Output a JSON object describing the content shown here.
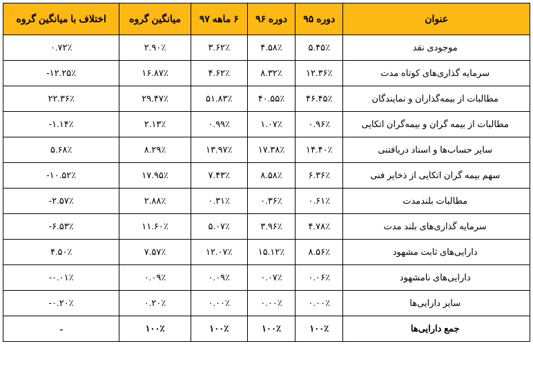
{
  "table": {
    "columns": [
      "عنوان",
      "دوره ۹۵",
      "دوره ۹۶",
      "۶ ماهه ۹۷",
      "میانگین گروه",
      "اختلاف با میانگین گروه"
    ],
    "rows": [
      {
        "title": "موجودی نقد",
        "c95": "۵.۴۵٪",
        "c96": "۴.۵۸٪",
        "c97": "۳.۶۲٪",
        "avg": "۲.۹۰٪",
        "diff": "۰.۷۲٪"
      },
      {
        "title": "سرمایه گذاری‌های کوتاه مدت",
        "c95": "۱۲.۳۶٪",
        "c96": "۸.۳۲٪",
        "c97": "۴.۶۲٪",
        "avg": "۱۶.۸۷٪",
        "diff": "-۱۲.۲۵٪"
      },
      {
        "title": "مطالبات از بیمه‌گذاران و نمایندگان",
        "c95": "۴۶.۴۵٪",
        "c96": "۴۰.۵۵٪",
        "c97": "۵۱.۸۳٪",
        "avg": "۲۹.۴۷٪",
        "diff": "۲۲.۳۶٪"
      },
      {
        "title": "مطالبات از بیمه گران و بیمه‌گران اتکایی",
        "c95": "۰.۹۶٪",
        "c96": "۱.۰۷٪",
        "c97": "۰.۹۹٪",
        "avg": "۲.۱۳٪",
        "diff": "-۱.۱۴٪"
      },
      {
        "title": "سایر حساب‌ها و اسناد دریافتنی",
        "c95": "۱۴.۴۰٪",
        "c96": "۱۷.۳۸٪",
        "c97": "۱۳.۹۷٪",
        "avg": "۸.۲۹٪",
        "diff": "۵.۶۸٪"
      },
      {
        "title": "سهم بیمه گران اتکایی از ذخایر فنی",
        "c95": "۶.۳۶٪",
        "c96": "۸.۵۸٪",
        "c97": "۷.۴۳٪",
        "avg": "۱۷.۹۵٪",
        "diff": "-۱۰.۵۲٪"
      },
      {
        "title": "مطالبات بلندمدت",
        "c95": "۰.۶۱٪",
        "c96": "۰.۳۶٪",
        "c97": "۰.۳۱٪",
        "avg": "۲.۸۸٪",
        "diff": "-۲.۵۷٪"
      },
      {
        "title": "سرمایه گذاری‌های بلند مدت",
        "c95": "۴.۷۸٪",
        "c96": "۳.۹۶٪",
        "c97": "۵.۰۷٪",
        "avg": "۱۱.۶۰٪",
        "diff": "-۶.۵۳٪"
      },
      {
        "title": "دارایی‌های ثابت مشهود",
        "c95": "۸.۵۶٪",
        "c96": "۱۵.۱۲٪",
        "c97": "۱۲.۰۷٪",
        "avg": "۷.۵۷٪",
        "diff": "۴.۵۰٪"
      },
      {
        "title": "دارایی‌های نامشهود",
        "c95": "۰.۰۶٪",
        "c96": "۰.۰۷٪",
        "c97": "۰.۰۹٪",
        "avg": "۰.۰۹٪",
        "diff": "-۰.۰۱٪"
      },
      {
        "title": "سایر دارایی‌ها",
        "c95": "۰.۰۰٪",
        "c96": "۰.۰۰٪",
        "c97": "۰.۰۰٪",
        "avg": "۰.۲۰٪",
        "diff": "-۰.۲۰٪"
      },
      {
        "title": "جمع دارایی‌ها",
        "c95": "۱۰۰٪",
        "c96": "۱۰۰٪",
        "c97": "۱۰۰٪",
        "avg": "۱۰۰٪",
        "diff": "-",
        "total": true
      }
    ],
    "header_bg": "#fdb913",
    "header_color": "#000000",
    "cell_bg": "#ffffff",
    "cell_color": "#000000",
    "border_color": "#000000",
    "header_fontsize": 14,
    "cell_fontsize": 13
  }
}
